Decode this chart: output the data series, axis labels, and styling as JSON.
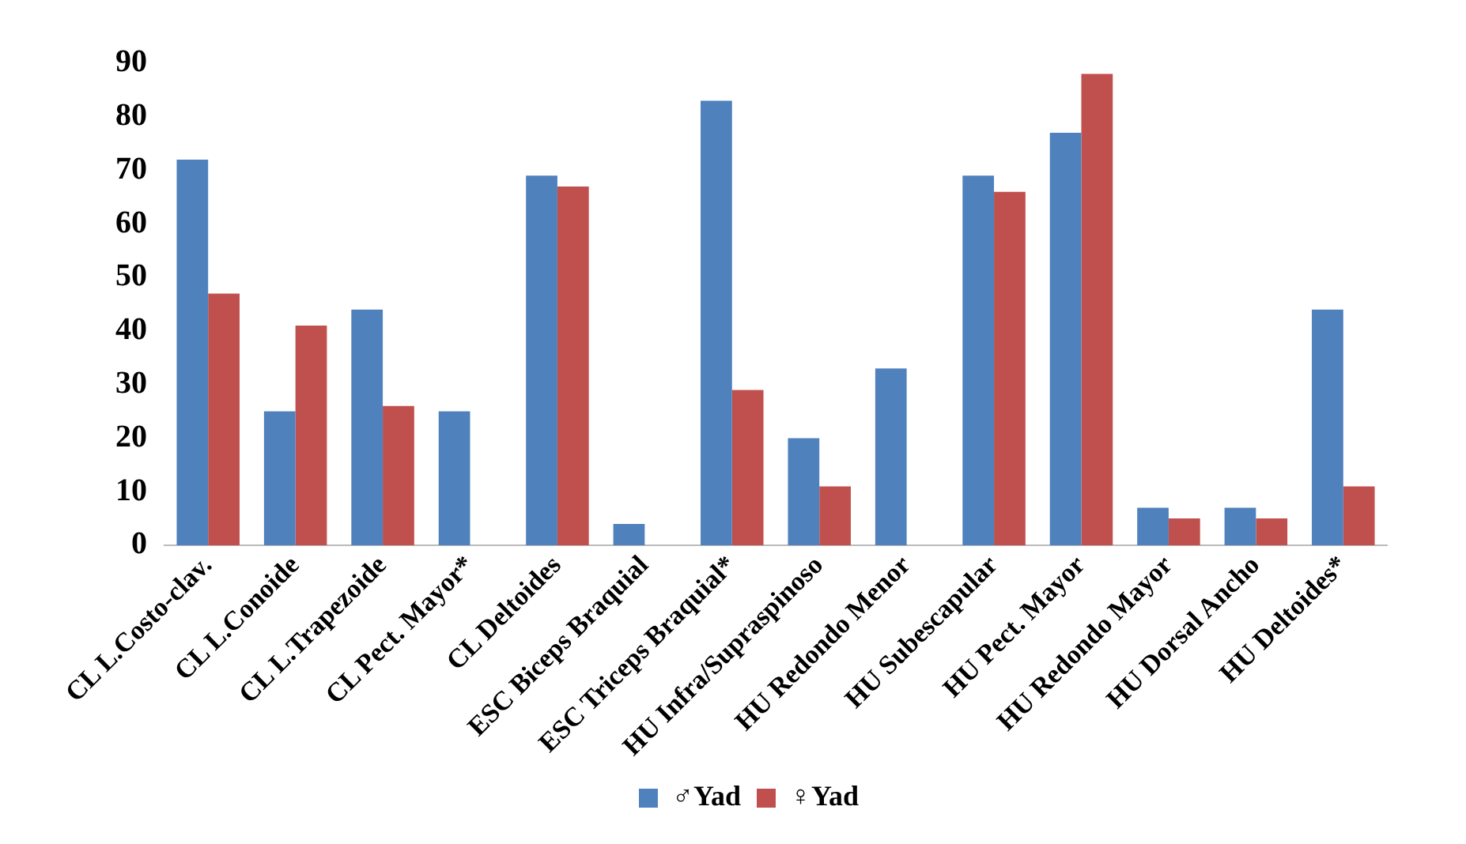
{
  "chart_data": {
    "type": "bar",
    "categories": [
      "CL L.Costo-clav.",
      "CL L.Conoide",
      "CL L.Trapezoide",
      "CL Pect. Mayor*",
      "CL Deltoides",
      "ESC Biceps Braquial",
      "ESC Triceps Braquial*",
      "HU Infra/Supraspinoso",
      "HU Redondo Menor",
      "HU Subescapular",
      "HU Pect. Mayor",
      "HU Redondo Mayor",
      "HU Dorsal Ancho",
      "HU Deltoides*"
    ],
    "series": [
      {
        "name": "♂Yad",
        "color": "#4f81bd",
        "values": [
          72,
          25,
          44,
          25,
          69,
          4,
          83,
          20,
          33,
          69,
          77,
          7,
          7,
          44
        ]
      },
      {
        "name": "♀Yad",
        "color": "#c0504d",
        "values": [
          47,
          41,
          26,
          0,
          67,
          0,
          29,
          11,
          0,
          66,
          88,
          5,
          5,
          11
        ]
      }
    ],
    "ylim": [
      0,
      90
    ],
    "yticks": [
      0,
      10,
      20,
      30,
      40,
      50,
      60,
      70,
      80,
      90
    ],
    "grid": false,
    "legend": "bottom"
  }
}
